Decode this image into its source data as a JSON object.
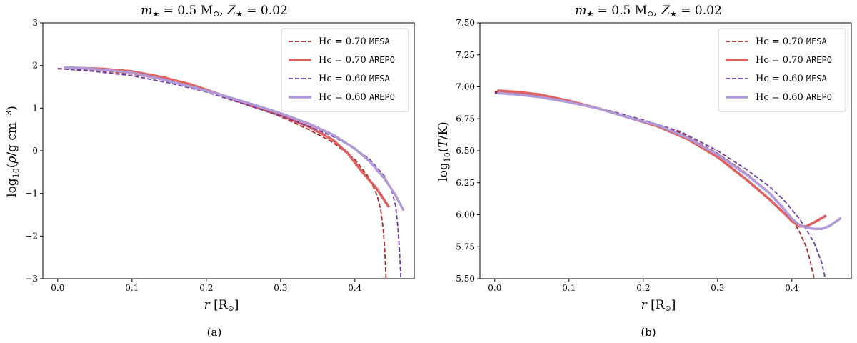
{
  "chart_data": [
    {
      "type": "line",
      "title": "m★ = 0.5 M⊙, Z★ = 0.02",
      "xlabel": "r [R⊙]",
      "ylabel": "log10(ρ/g cm−3)",
      "caption": "(a)",
      "xlim": [
        -0.02,
        0.48
      ],
      "ylim": [
        -3,
        3
      ],
      "xticks": [
        "0.0",
        "0.1",
        "0.2",
        "0.3",
        "0.4"
      ],
      "yticks": [
        "−3",
        "−2",
        "−1",
        "0",
        "1",
        "2",
        "3"
      ],
      "xtick_values": [
        0.0,
        0.1,
        0.2,
        0.3,
        0.4
      ],
      "ytick_values": [
        -3,
        -2,
        -1,
        0,
        1,
        2,
        3
      ],
      "legend_position": "top-right",
      "series": [
        {
          "name": "Hc = 0.70 MESA",
          "label_math": "Hc = 0.70",
          "label_code": "MESA",
          "color": "#a82828",
          "style": "dashed",
          "x": [
            0.0,
            0.05,
            0.1,
            0.15,
            0.2,
            0.25,
            0.3,
            0.34,
            0.37,
            0.4,
            0.42,
            0.43,
            0.435,
            0.438,
            0.44,
            0.441,
            0.442
          ],
          "y": [
            1.92,
            1.89,
            1.8,
            1.64,
            1.42,
            1.13,
            0.8,
            0.48,
            0.2,
            -0.2,
            -0.65,
            -1.05,
            -1.4,
            -1.8,
            -2.25,
            -2.6,
            -3.0
          ]
        },
        {
          "name": "Hc = 0.70 AREPO",
          "label_math": "Hc = 0.70",
          "label_code": "AREPO",
          "color": "#e06060",
          "style": "solid",
          "x": [
            0.01,
            0.03,
            0.06,
            0.1,
            0.14,
            0.18,
            0.22,
            0.26,
            0.3,
            0.34,
            0.37,
            0.39,
            0.41,
            0.43,
            0.445
          ],
          "y": [
            1.95,
            1.94,
            1.92,
            1.86,
            1.73,
            1.55,
            1.31,
            1.06,
            0.83,
            0.55,
            0.26,
            -0.05,
            -0.5,
            -0.9,
            -1.3
          ]
        },
        {
          "name": "Hc = 0.60 MESA",
          "label_math": "Hc = 0.60",
          "label_code": "MESA",
          "color": "#6a3aa8",
          "style": "dashed",
          "x": [
            0.0,
            0.05,
            0.1,
            0.15,
            0.2,
            0.25,
            0.3,
            0.34,
            0.37,
            0.4,
            0.42,
            0.44,
            0.45,
            0.455,
            0.458,
            0.46,
            0.462
          ],
          "y": [
            1.93,
            1.86,
            1.76,
            1.59,
            1.38,
            1.1,
            0.82,
            0.56,
            0.34,
            0.05,
            -0.2,
            -0.6,
            -0.95,
            -1.3,
            -1.8,
            -2.3,
            -3.0
          ]
        },
        {
          "name": "Hc = 0.60 AREPO",
          "label_math": "Hc = 0.60",
          "label_code": "AREPO",
          "color": "#b09ad8",
          "style": "solid",
          "x": [
            0.01,
            0.03,
            0.06,
            0.1,
            0.14,
            0.18,
            0.22,
            0.26,
            0.3,
            0.34,
            0.37,
            0.4,
            0.42,
            0.44,
            0.455,
            0.465
          ],
          "y": [
            1.95,
            1.94,
            1.9,
            1.83,
            1.68,
            1.5,
            1.31,
            1.1,
            0.88,
            0.62,
            0.38,
            0.05,
            -0.25,
            -0.65,
            -1.05,
            -1.38
          ]
        }
      ]
    },
    {
      "type": "line",
      "title": "m★ = 0.5 M⊙, Z★ = 0.02",
      "xlabel": "r [R⊙]",
      "ylabel": "log10(T/K)",
      "caption": "(b)",
      "xlim": [
        -0.02,
        0.48
      ],
      "ylim": [
        5.5,
        7.5
      ],
      "xticks": [
        "0.0",
        "0.1",
        "0.2",
        "0.3",
        "0.4"
      ],
      "yticks": [
        "5.50",
        "5.75",
        "6.00",
        "6.25",
        "6.50",
        "6.75",
        "7.00",
        "7.25",
        "7.50"
      ],
      "xtick_values": [
        0.0,
        0.1,
        0.2,
        0.3,
        0.4
      ],
      "ytick_values": [
        5.5,
        5.75,
        6.0,
        6.25,
        6.5,
        6.75,
        7.0,
        7.25,
        7.5
      ],
      "legend_position": "top-right",
      "series": [
        {
          "name": "Hc = 0.70 MESA",
          "label_math": "Hc = 0.70",
          "label_code": "MESA",
          "color": "#a82828",
          "style": "dashed",
          "x": [
            0.0,
            0.05,
            0.1,
            0.15,
            0.2,
            0.25,
            0.3,
            0.34,
            0.37,
            0.39,
            0.4,
            0.41,
            0.42,
            0.425,
            0.43
          ],
          "y": [
            6.96,
            6.94,
            6.89,
            6.82,
            6.74,
            6.64,
            6.48,
            6.32,
            6.17,
            6.05,
            5.97,
            5.87,
            5.74,
            5.63,
            5.5
          ]
        },
        {
          "name": "Hc = 0.70 AREPO",
          "label_math": "Hc = 0.70",
          "label_code": "AREPO",
          "color": "#e06060",
          "style": "solid",
          "x": [
            0.005,
            0.03,
            0.06,
            0.1,
            0.14,
            0.18,
            0.22,
            0.26,
            0.3,
            0.34,
            0.37,
            0.39,
            0.4,
            0.41,
            0.42,
            0.43,
            0.445
          ],
          "y": [
            6.97,
            6.96,
            6.94,
            6.89,
            6.83,
            6.76,
            6.69,
            6.59,
            6.45,
            6.27,
            6.12,
            6.01,
            5.95,
            5.91,
            5.91,
            5.94,
            5.99
          ]
        },
        {
          "name": "Hc = 0.60 MESA",
          "label_math": "Hc = 0.60",
          "label_code": "MESA",
          "color": "#6a3aa8",
          "style": "dashed",
          "x": [
            0.0,
            0.05,
            0.1,
            0.15,
            0.2,
            0.25,
            0.3,
            0.34,
            0.37,
            0.39,
            0.41,
            0.42,
            0.43,
            0.44,
            0.445
          ],
          "y": [
            6.95,
            6.93,
            6.88,
            6.82,
            6.74,
            6.65,
            6.5,
            6.35,
            6.22,
            6.11,
            5.97,
            5.88,
            5.78,
            5.63,
            5.5
          ]
        },
        {
          "name": "Hc = 0.60 AREPO",
          "label_math": "Hc = 0.60",
          "label_code": "AREPO",
          "color": "#b09ad8",
          "style": "solid",
          "x": [
            0.005,
            0.03,
            0.06,
            0.1,
            0.14,
            0.18,
            0.22,
            0.26,
            0.3,
            0.34,
            0.37,
            0.39,
            0.4,
            0.41,
            0.42,
            0.43,
            0.44,
            0.45,
            0.465
          ],
          "y": [
            6.95,
            6.94,
            6.92,
            6.88,
            6.83,
            6.76,
            6.7,
            6.6,
            6.47,
            6.31,
            6.17,
            6.04,
            5.97,
            5.92,
            5.9,
            5.89,
            5.89,
            5.91,
            5.97
          ]
        }
      ]
    }
  ]
}
